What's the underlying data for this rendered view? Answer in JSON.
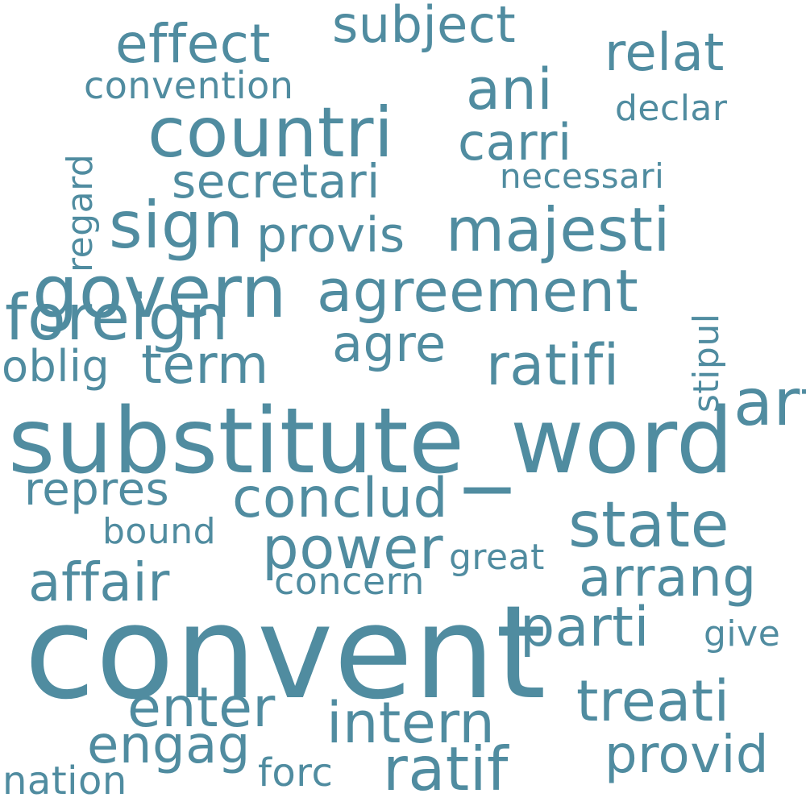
{
  "words": {
    "convent": "convent",
    "substitute_word": "substitute_word",
    "countri": "countri",
    "govern": "govern",
    "agreement": "agreement",
    "majesti": "majesti",
    "sign": "sign",
    "foreign": "foreign",
    "articl": "articl",
    "state": "state",
    "power": "power",
    "conclud": "conclud",
    "ratifi": "ratifi",
    "treati": "treati",
    "intern": "intern",
    "ratif": "ratif",
    "affair": "affair",
    "arrang": "arrang",
    "parti": "parti",
    "enter": "enter",
    "provid": "provid",
    "effect": "effect",
    "ani": "ani",
    "relat": "relat",
    "subject": "subject",
    "carri": "carri",
    "secretari": "secretari",
    "provis": "provis",
    "term": "term",
    "agre": "agre",
    "engag": "engag",
    "repres": "repres",
    "oblig": "oblig",
    "convention": "convention",
    "declar": "declar",
    "necessari": "necessari",
    "regard": "regard",
    "stipul": "stipul",
    "bound": "bound",
    "concern": "concern",
    "great": "great",
    "give": "give",
    "nation": "nation",
    "forc": "forc"
  },
  "colors": {
    "text": "#508ca0",
    "background": "#ffffff"
  }
}
